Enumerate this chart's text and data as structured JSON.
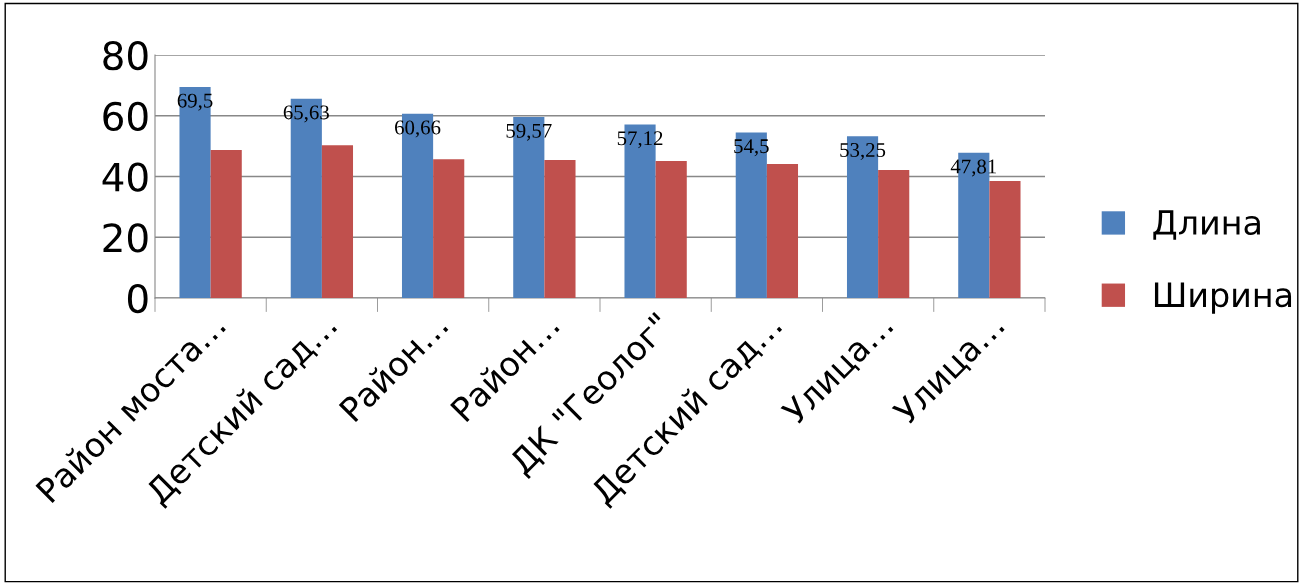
{
  "chart_data": {
    "type": "bar",
    "categories": [
      "Район моста…",
      "Детский сад…",
      "Район…",
      "Район…",
      "ДК \"Геолог\"",
      "Детский сад…",
      "Улица…",
      "Улица…"
    ],
    "series": [
      {
        "name": "Длина",
        "color": "#4f81bd",
        "values": [
          69.5,
          65.63,
          60.66,
          59.57,
          57.12,
          54.5,
          53.25,
          47.81
        ],
        "value_labels": [
          "69,5",
          "65,63",
          "60,66",
          "59,57",
          "57,12",
          "54,5",
          "53,25",
          "47,81"
        ]
      },
      {
        "name": "Ширина",
        "color": "#c0504d",
        "values": [
          48.7,
          50.3,
          45.7,
          45.4,
          45.1,
          44.1,
          42.1,
          38.5
        ]
      }
    ],
    "ylim": [
      0,
      80
    ],
    "yticks": [
      0,
      20,
      40,
      60,
      80
    ],
    "grid": "y",
    "legend": "right"
  }
}
